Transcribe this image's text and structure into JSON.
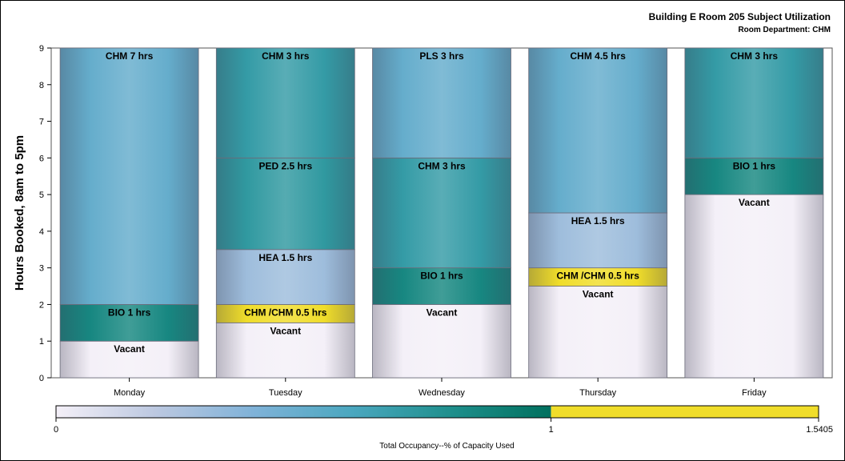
{
  "title": "Building E Room 205 Subject Utilization",
  "subtitle": "Room Department: CHM",
  "chart_data": {
    "type": "bar",
    "stacked": true,
    "ylabel": "Hours Booked, 8am to 5pm",
    "ylim": [
      0,
      9
    ],
    "yticks": [
      0,
      1,
      2,
      3,
      4,
      5,
      6,
      7,
      8,
      9
    ],
    "categories": [
      "Monday",
      "Tuesday",
      "Wednesday",
      "Thursday",
      "Friday"
    ],
    "bars": [
      {
        "day": "Monday",
        "segments": [
          {
            "label": "Vacant",
            "hours": 1,
            "occupancy": 0
          },
          {
            "label": "BIO 1 hrs",
            "hours": 1,
            "occupancy": 0.85
          },
          {
            "label": "CHM 7 hrs",
            "hours": 7,
            "occupancy": 0.5
          }
        ]
      },
      {
        "day": "Tuesday",
        "segments": [
          {
            "label": "Vacant",
            "hours": 1.5,
            "occupancy": 0
          },
          {
            "label": "CHM /CHM 0.5 hrs",
            "hours": 0.5,
            "occupancy": 1.5
          },
          {
            "label": "HEA 1.5 hrs",
            "hours": 1.5,
            "occupancy": 0.3
          },
          {
            "label": "PED 2.5 hrs",
            "hours": 2.5,
            "occupancy": 0.72
          },
          {
            "label": "CHM 3 hrs",
            "hours": 3,
            "occupancy": 0.7
          }
        ]
      },
      {
        "day": "Wednesday",
        "segments": [
          {
            "label": "Vacant",
            "hours": 2,
            "occupancy": 0
          },
          {
            "label": "BIO 1 hrs",
            "hours": 1,
            "occupancy": 0.85
          },
          {
            "label": "CHM 3 hrs",
            "hours": 3,
            "occupancy": 0.7
          },
          {
            "label": "PLS 3 hrs",
            "hours": 3,
            "occupancy": 0.5
          }
        ]
      },
      {
        "day": "Thursday",
        "segments": [
          {
            "label": "Vacant",
            "hours": 2.5,
            "occupancy": 0
          },
          {
            "label": "CHM /CHM 0.5 hrs",
            "hours": 0.5,
            "occupancy": 1.5
          },
          {
            "label": "HEA 1.5 hrs",
            "hours": 1.5,
            "occupancy": 0.3
          },
          {
            "label": "CHM 4.5 hrs",
            "hours": 4.5,
            "occupancy": 0.5
          }
        ]
      },
      {
        "day": "Friday",
        "segments": [
          {
            "label": "Vacant",
            "hours": 5,
            "occupancy": 0
          },
          {
            "label": "BIO 1 hrs",
            "hours": 1,
            "occupancy": 0.85
          },
          {
            "label": "CHM 3 hrs",
            "hours": 3,
            "occupancy": 0.7
          }
        ]
      }
    ],
    "colorbar": {
      "label": "Total Occupancy--% of Capacity Used",
      "min": 0,
      "mid": 1,
      "max": 1.5405,
      "tick_labels": [
        "0",
        "1",
        "1.5405"
      ],
      "gradient_colors": [
        "#f4f0f8",
        "#bcc8e0",
        "#7fb2d8",
        "#4aa7bf",
        "#1e8f8c",
        "#00705e"
      ],
      "over_color": "#f0dd2a"
    }
  }
}
